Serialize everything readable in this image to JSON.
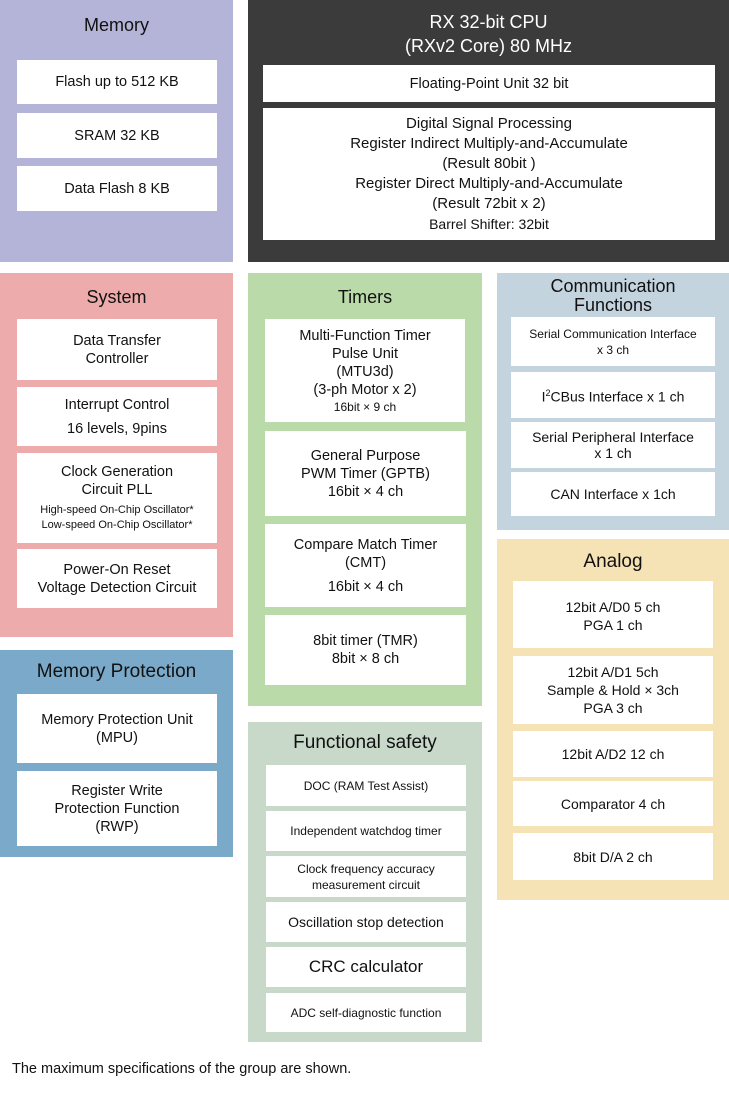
{
  "colors": {
    "memory": "#b4b4d8",
    "cpu": "#3b3b3b",
    "system": "#eeabab",
    "memory_protection": "#7aa9c9",
    "timers": "#badba9",
    "functional_safety": "#c8d8c9",
    "communication": "#c4d4df",
    "analog": "#f6e3b5"
  },
  "memory": {
    "title": "Memory",
    "items": [
      "Flash up to 512 KB",
      "SRAM 32 KB",
      "Data Flash 8 KB"
    ]
  },
  "cpu": {
    "title_line1": "RX 32-bit CPU",
    "title_line2": "(RXv2 Core) 80 MHz",
    "fpu": "Floating-Point Unit 32 bit",
    "dsp": [
      "Digital Signal Processing",
      "Register Indirect Multiply-and-Accumulate",
      "(Result 80bit )",
      "Register Direct Multiply-and-Accumulate",
      "(Result 72bit x 2)",
      "Barrel Shifter: 32bit"
    ]
  },
  "system": {
    "title": "System",
    "dtc": [
      "Data Transfer",
      "Controller"
    ],
    "interrupt": [
      "Interrupt Control",
      "16 levels, 9pins"
    ],
    "clock": [
      "Clock Generation",
      "Circuit PLL",
      "High-speed On-Chip Oscillator*",
      "Low-speed On-Chip Oscillator*"
    ],
    "reset": [
      "Power-On Reset",
      "Voltage Detection Circuit"
    ]
  },
  "memory_protection": {
    "title": "Memory Protection",
    "mpu": [
      "Memory Protection Unit",
      "(MPU)"
    ],
    "rwp": [
      "Register Write",
      "Protection Function",
      "(RWP)"
    ]
  },
  "timers": {
    "title": "Timers",
    "mtu": [
      "Multi-Function Timer",
      "Pulse Unit",
      "(MTU3d)",
      "(3-ph Motor x 2)",
      "16bit × 9 ch"
    ],
    "gptb": [
      "General Purpose",
      "PWM Timer (GPTB)",
      "16bit × 4 ch"
    ],
    "cmt": [
      "Compare Match Timer",
      "(CMT)",
      "16bit × 4 ch"
    ],
    "tmr": [
      "8bit timer (TMR)",
      "8bit × 8 ch"
    ]
  },
  "functional_safety": {
    "title": "Functional safety",
    "doc": "DOC (RAM Test Assist)",
    "iwdt": "Independent watchdog timer",
    "cac": [
      "Clock frequency accuracy",
      "measurement circuit"
    ],
    "osc": "Oscillation stop detection",
    "crc": "CRC calculator",
    "adc": "ADC self-diagnostic function"
  },
  "communication": {
    "title_line1": "Communication",
    "title_line2": "Functions",
    "sci": [
      "Serial Communication Interface",
      "x 3 ch"
    ],
    "i2c_prefix": "I",
    "i2c_sup": "2",
    "i2c_rest": "CBus Interface x 1 ch",
    "spi": [
      "Serial Peripheral Interface",
      "x 1 ch"
    ],
    "can": "CAN Interface x 1ch"
  },
  "analog": {
    "title": "Analog",
    "ad0": [
      "12bit A/D0 5 ch",
      "PGA 1 ch"
    ],
    "ad1": [
      "12bit A/D1 5ch",
      "Sample & Hold × 3ch",
      "PGA 3 ch"
    ],
    "ad2": "12bit A/D2 12 ch",
    "comparator": "Comparator 4 ch",
    "da": "8bit D/A 2 ch"
  },
  "footnote": "The maximum specifications of the group are shown."
}
